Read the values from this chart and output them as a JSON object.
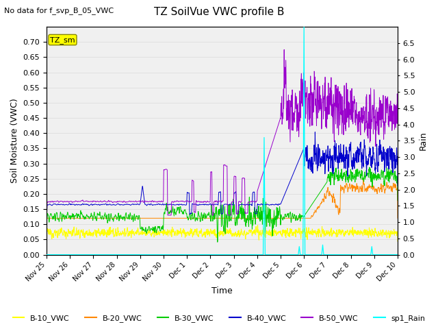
{
  "title": "TZ SoilVue VWC profile B",
  "no_data_label": "No data for f_svp_B_05_VWC",
  "tz_sm_label": "TZ_sm",
  "xlabel": "Time",
  "ylabel_left": "Soil Moisture (VWC)",
  "ylabel_right": "Rain",
  "ylim_left": [
    0.0,
    0.75
  ],
  "ylim_right": [
    0.0,
    7.0
  ],
  "yticks_left": [
    0.0,
    0.05,
    0.1,
    0.15,
    0.2,
    0.25,
    0.3,
    0.35,
    0.4,
    0.45,
    0.5,
    0.55,
    0.6,
    0.65,
    0.7
  ],
  "yticks_right": [
    0.0,
    0.5,
    1.0,
    1.5,
    2.0,
    2.5,
    3.0,
    3.5,
    4.0,
    4.5,
    5.0,
    5.5,
    6.0,
    6.5
  ],
  "colors": {
    "B10": "#ffff00",
    "B20": "#ff8800",
    "B30": "#00cc00",
    "B40": "#0000cc",
    "B50": "#9900cc",
    "Rain": "#00ffff"
  },
  "legend_labels": [
    "B-10_VWC",
    "B-20_VWC",
    "B-30_VWC",
    "B-40_VWC",
    "B-50_VWC",
    "sp1_Rain"
  ],
  "background_color": "#ffffff",
  "grid_color": "#e0e0e0",
  "n_points": 2160
}
